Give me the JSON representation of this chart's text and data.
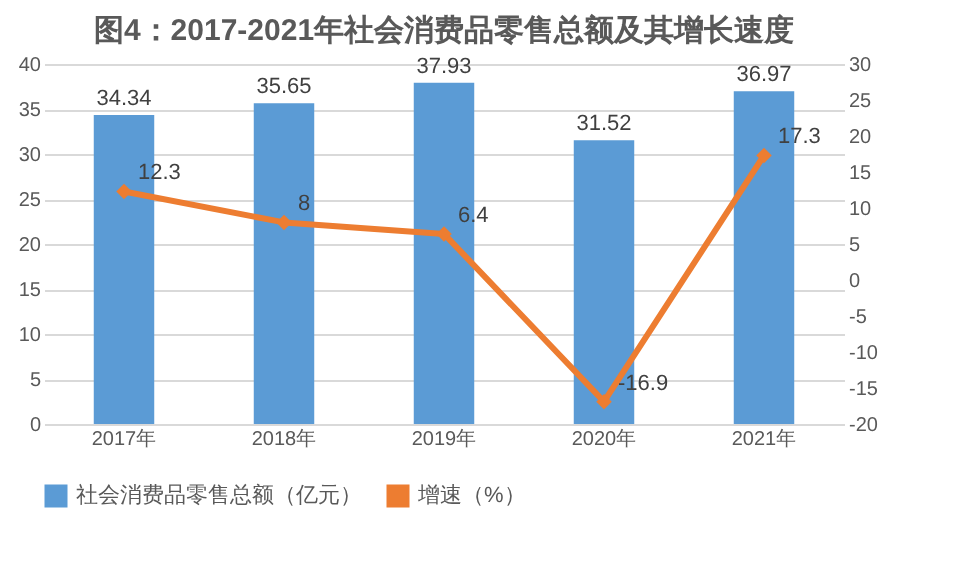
{
  "chart_data": {
    "type": "bar",
    "title": "图4：2017-2021年社会消费品零售总额及其增长速度",
    "categories": [
      "2017年",
      "2018年",
      "2019年",
      "2020年",
      "2021年"
    ],
    "series": [
      {
        "name": "社会消费品零售总额（亿元）",
        "color": "#5b9bd5",
        "values": [
          34.34,
          35.65,
          37.93,
          31.52,
          36.97
        ]
      },
      {
        "name": "增速（%）",
        "type": "line",
        "axis": "y2",
        "color": "#ed7d31",
        "marker": "diamond",
        "values": [
          12.3,
          8,
          6.4,
          -16.9,
          17.3
        ]
      }
    ],
    "ylim": [
      0,
      40
    ],
    "yticks": [
      0,
      5,
      10,
      15,
      20,
      25,
      30,
      35,
      40
    ],
    "y2lim": [
      -20,
      30
    ],
    "y2ticks": [
      -20,
      -15,
      -10,
      -5,
      0,
      5,
      10,
      15,
      20,
      25,
      30
    ],
    "grid": "y",
    "legend": "bottom",
    "data_labels": true
  }
}
